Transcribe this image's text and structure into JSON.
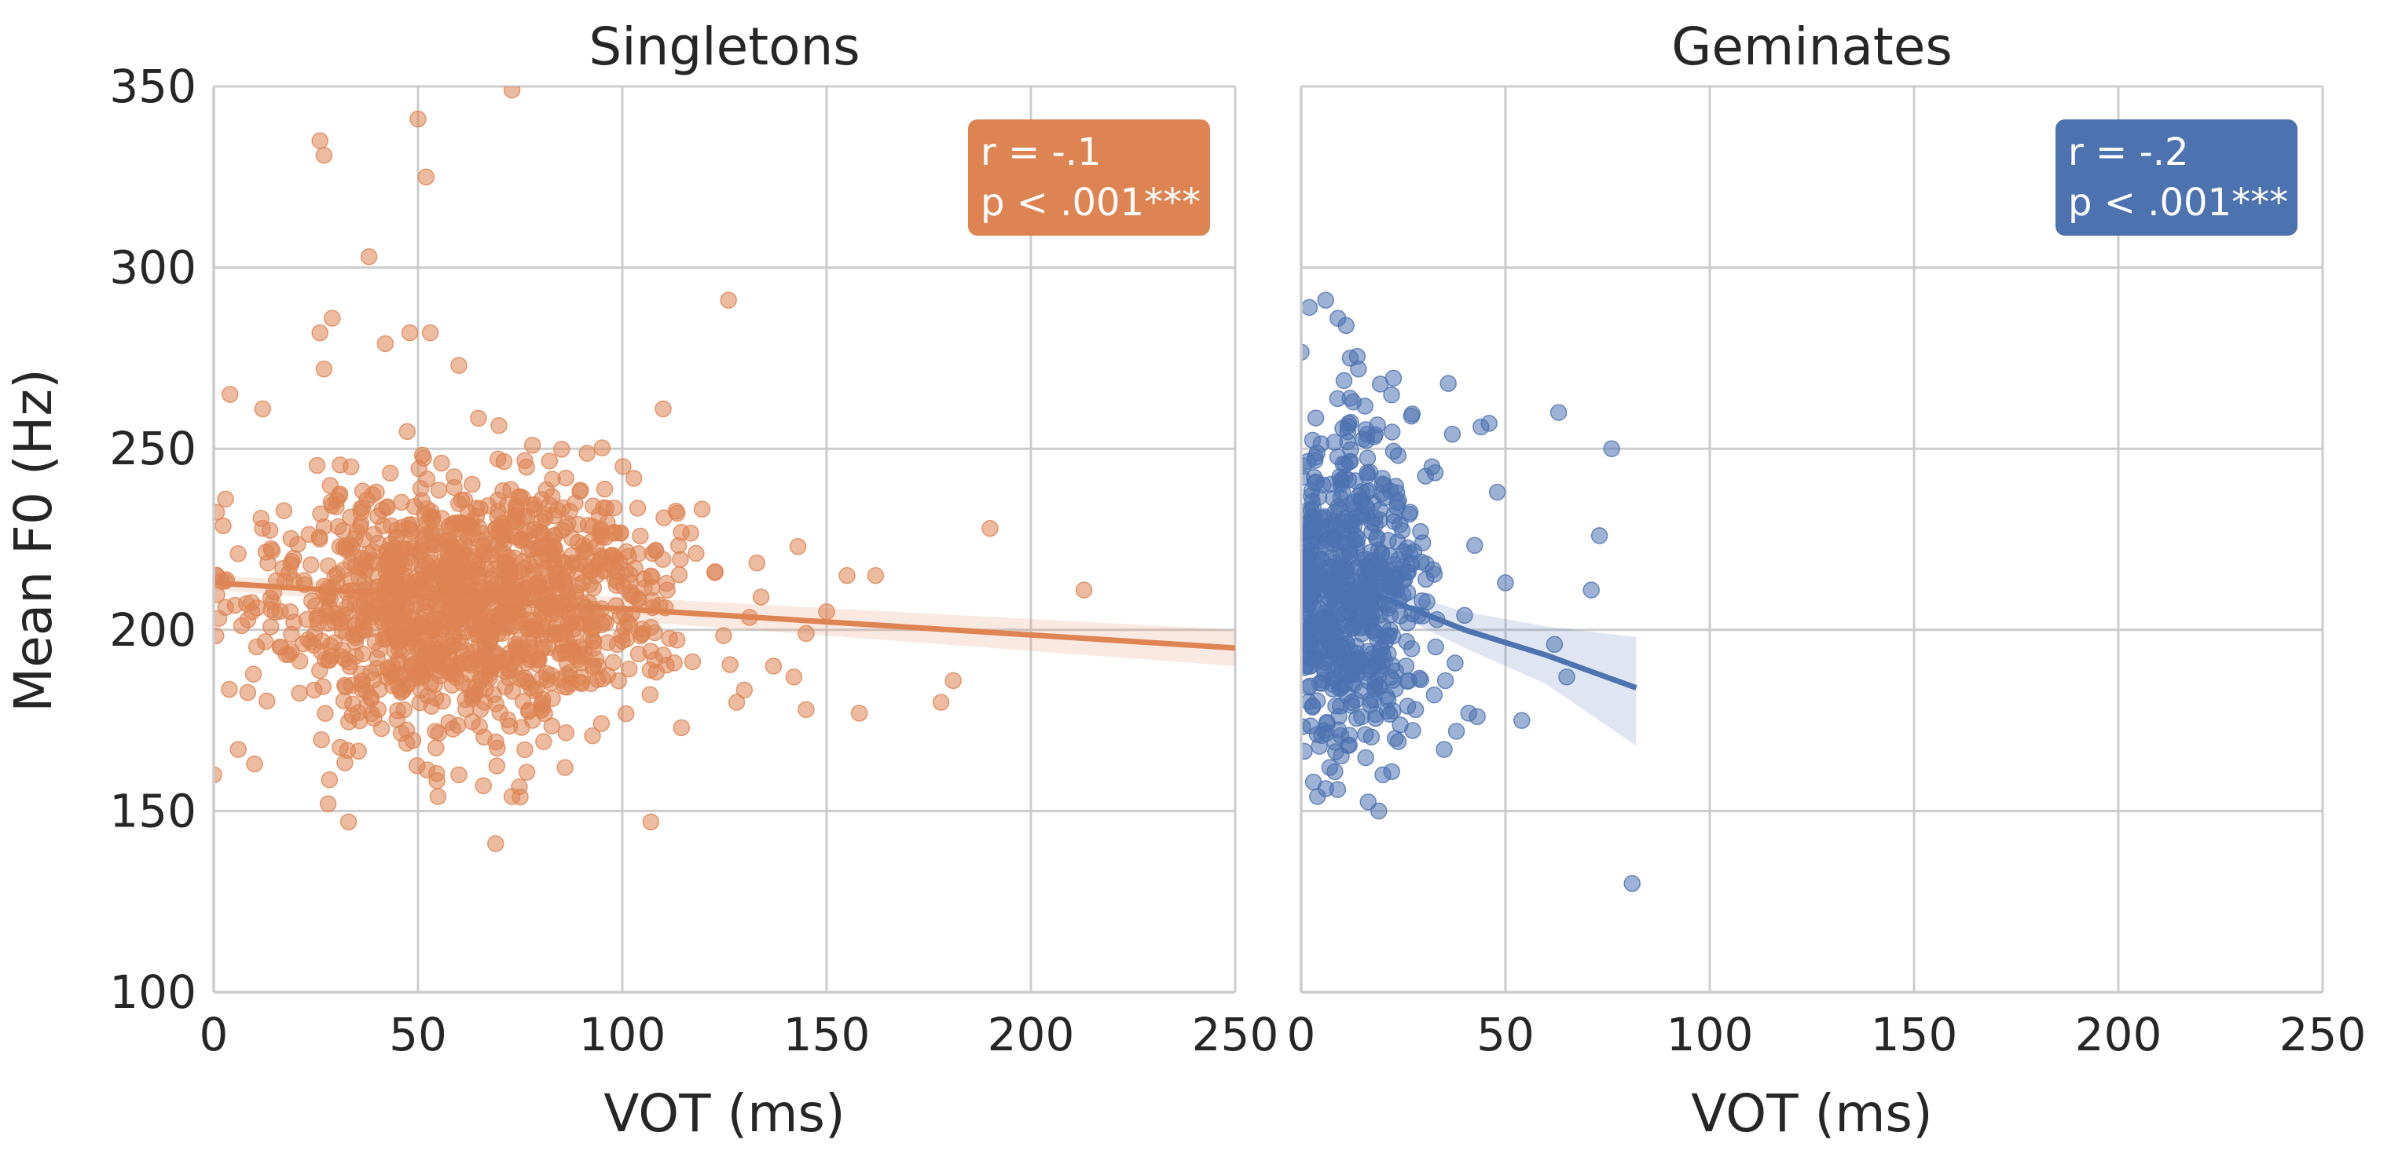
{
  "figure": {
    "ylabel": "Mean F0 (Hz)"
  },
  "chart_data": [
    {
      "type": "scatter",
      "title": "Singletons",
      "xlabel": "VOT (ms)",
      "ylabel": "Mean F0 (Hz)",
      "xlim": [
        0,
        250
      ],
      "ylim": [
        100,
        350
      ],
      "xticks": [
        "0",
        "50",
        "100",
        "150",
        "200",
        "250"
      ],
      "yticks": [
        "100",
        "150",
        "200",
        "250",
        "300",
        "350"
      ],
      "grid": true,
      "color": "#dd8452",
      "annotation": {
        "line1": "r = -.1",
        "line2": "p < .001***",
        "position": "top-right"
      },
      "regression": {
        "x": [
          0,
          250
        ],
        "y": [
          213,
          195
        ],
        "ci_upper": [
          215,
          200
        ],
        "ci_lower": [
          211,
          190
        ]
      },
      "outliers": [
        {
          "x": 26,
          "y": 335
        },
        {
          "x": 27,
          "y": 331
        },
        {
          "x": 50,
          "y": 341
        },
        {
          "x": 52,
          "y": 325
        },
        {
          "x": 73,
          "y": 349
        },
        {
          "x": 38,
          "y": 303
        },
        {
          "x": 126,
          "y": 291
        },
        {
          "x": 29,
          "y": 286
        },
        {
          "x": 26,
          "y": 282
        },
        {
          "x": 48,
          "y": 282
        },
        {
          "x": 53,
          "y": 282
        },
        {
          "x": 60,
          "y": 273
        },
        {
          "x": 27,
          "y": 272
        },
        {
          "x": 42,
          "y": 279
        },
        {
          "x": 4,
          "y": 265
        },
        {
          "x": 12,
          "y": 261
        },
        {
          "x": 110,
          "y": 261
        },
        {
          "x": 190,
          "y": 228
        },
        {
          "x": 213,
          "y": 211
        },
        {
          "x": 155,
          "y": 215
        },
        {
          "x": 162,
          "y": 215
        },
        {
          "x": 150,
          "y": 205
        },
        {
          "x": 143,
          "y": 223
        },
        {
          "x": 145,
          "y": 199
        },
        {
          "x": 142,
          "y": 187
        },
        {
          "x": 137,
          "y": 190
        },
        {
          "x": 145,
          "y": 178
        },
        {
          "x": 158,
          "y": 177
        },
        {
          "x": 178,
          "y": 180
        },
        {
          "x": 181,
          "y": 186
        },
        {
          "x": 128,
          "y": 180
        },
        {
          "x": 107,
          "y": 147
        },
        {
          "x": 69,
          "y": 141
        },
        {
          "x": 33,
          "y": 147
        },
        {
          "x": 28,
          "y": 152
        },
        {
          "x": 73,
          "y": 154
        },
        {
          "x": 0,
          "y": 160
        },
        {
          "x": 6,
          "y": 167
        },
        {
          "x": 10,
          "y": 163
        },
        {
          "x": 86,
          "y": 162
        },
        {
          "x": 60,
          "y": 160
        },
        {
          "x": 66,
          "y": 157
        }
      ],
      "cluster": {
        "n": 1300,
        "x_mean": 62,
        "x_sd": 24,
        "x_min": 0,
        "x_max": 135,
        "y_mean": 207,
        "y_sd": 17,
        "seed": 11
      }
    },
    {
      "type": "scatter",
      "title": "Geminates",
      "xlabel": "VOT (ms)",
      "ylabel": "",
      "xlim": [
        0,
        250
      ],
      "ylim": [
        100,
        350
      ],
      "xticks": [
        "0",
        "50",
        "100",
        "150",
        "200",
        "250"
      ],
      "yticks": [
        "100",
        "150",
        "200",
        "250",
        "300",
        "350"
      ],
      "grid": true,
      "color": "#4c72b0",
      "annotation": {
        "line1": "r = -.2",
        "line2": "p < .001***",
        "position": "top-right"
      },
      "regression": {
        "x": [
          0,
          20,
          40,
          60,
          82
        ],
        "y": [
          218,
          209,
          200,
          193,
          184
        ],
        "ci_upper": [
          224,
          212,
          205,
          201,
          198
        ],
        "ci_lower": [
          212,
          206,
          195,
          185,
          168
        ]
      },
      "outliers": [
        {
          "x": 2,
          "y": 289
        },
        {
          "x": 6,
          "y": 291
        },
        {
          "x": 9,
          "y": 286
        },
        {
          "x": 11,
          "y": 284
        },
        {
          "x": 12,
          "y": 275
        },
        {
          "x": 14,
          "y": 272
        },
        {
          "x": 36,
          "y": 268
        },
        {
          "x": 27,
          "y": 259
        },
        {
          "x": 63,
          "y": 260
        },
        {
          "x": 76,
          "y": 250
        },
        {
          "x": 73,
          "y": 226
        },
        {
          "x": 71,
          "y": 211
        },
        {
          "x": 50,
          "y": 213
        },
        {
          "x": 62,
          "y": 196
        },
        {
          "x": 48,
          "y": 238
        },
        {
          "x": 37,
          "y": 254
        },
        {
          "x": 44,
          "y": 256
        },
        {
          "x": 46,
          "y": 257
        },
        {
          "x": 65,
          "y": 187
        },
        {
          "x": 54,
          "y": 175
        },
        {
          "x": 81,
          "y": 130
        },
        {
          "x": 19,
          "y": 150
        },
        {
          "x": 20,
          "y": 160
        },
        {
          "x": 3,
          "y": 158
        },
        {
          "x": 4,
          "y": 154
        },
        {
          "x": 7,
          "y": 162
        },
        {
          "x": 38,
          "y": 172
        },
        {
          "x": 41,
          "y": 177
        },
        {
          "x": 35,
          "y": 167
        },
        {
          "x": 28,
          "y": 178
        },
        {
          "x": 32,
          "y": 245
        },
        {
          "x": 40,
          "y": 204
        }
      ],
      "cluster": {
        "n": 620,
        "x_mean": 12,
        "x_sd": 9,
        "x_min": 0,
        "x_max": 45,
        "y_mean": 212,
        "y_sd": 22,
        "seed": 29
      }
    }
  ]
}
